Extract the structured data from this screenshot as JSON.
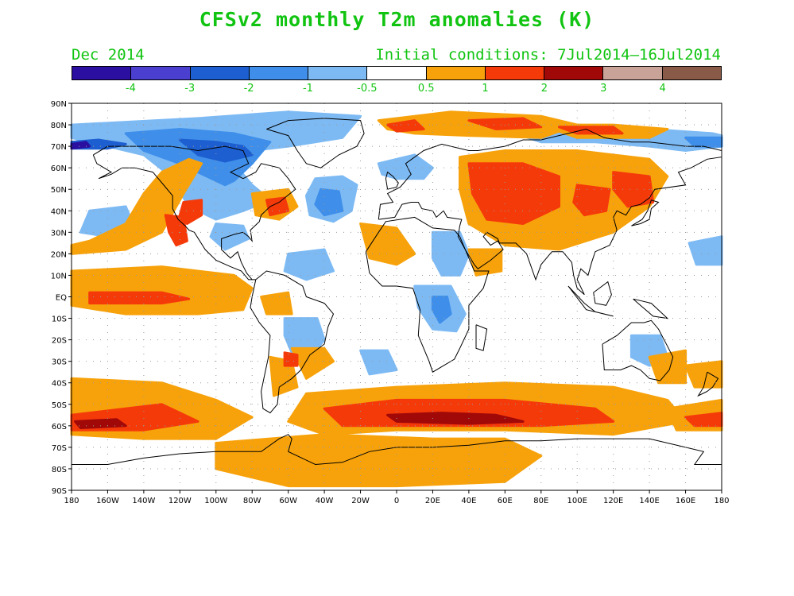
{
  "title": "CFSv2 monthly T2m anomalies (K)",
  "forecast_month": "Dec 2014",
  "initial_conditions": "Initial conditions: 7Jul2014–16Jul2014",
  "colorbar": {
    "colors": [
      "#2a0fa0",
      "#4b3fcf",
      "#1d5fd0",
      "#3f8fea",
      "#7dbaf4",
      "#ffffff",
      "#f7a20b",
      "#f53a0a",
      "#a10808",
      "#c9a398",
      "#8a5a48"
    ],
    "labels": [
      "-4",
      "-3",
      "-2",
      "-1",
      "-0.5",
      "0.5",
      "1",
      "2",
      "3",
      "4"
    ]
  },
  "lat_labels": [
    "90N",
    "80N",
    "70N",
    "60N",
    "50N",
    "40N",
    "30N",
    "20N",
    "10N",
    "EQ",
    "10S",
    "20S",
    "30S",
    "40S",
    "50S",
    "60S",
    "70S",
    "80S",
    "90S"
  ],
  "lon_labels": [
    "180",
    "160W",
    "140W",
    "120W",
    "100W",
    "80W",
    "60W",
    "40W",
    "20W",
    "0",
    "20E",
    "40E",
    "60E",
    "80E",
    "100E",
    "120E",
    "140E",
    "160E",
    "180"
  ],
  "map_colors": {
    "warm1": "#f7a20b",
    "warm2": "#f53a0a",
    "warm3": "#a10808",
    "cool1": "#7dbaf4",
    "cool2": "#3f8fea",
    "cool3": "#1d5fd0",
    "cool4": "#2a0fa0"
  }
}
